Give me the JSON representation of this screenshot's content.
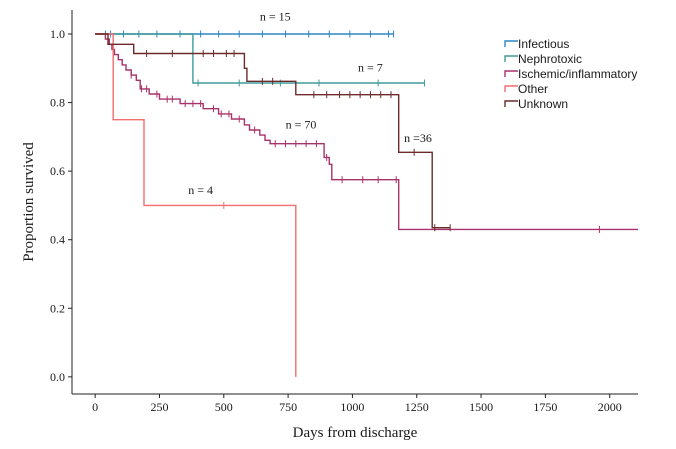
{
  "chart_data": {
    "type": "line",
    "subtype": "kaplan-meier",
    "title": "",
    "xlabel": "Days from discharge",
    "ylabel": "Proportion survived",
    "xlim": [
      -90,
      2110
    ],
    "ylim": [
      -0.05,
      1.07
    ],
    "xticks": [
      0,
      250,
      500,
      750,
      1000,
      1250,
      1500,
      1750,
      2000
    ],
    "yticks": [
      0.0,
      0.2,
      0.4,
      0.6,
      0.8,
      1.0
    ],
    "ytick_labels": [
      "0.0",
      "0.2",
      "0.4",
      "0.6",
      "0.8",
      "1.0"
    ],
    "grid": false,
    "legend_position": "top-right",
    "series": [
      {
        "name": "Infectious",
        "color": "#2E86C1",
        "steps": [
          [
            0,
            1.0
          ],
          [
            1160,
            1.0
          ]
        ],
        "censor_times": [
          40,
          60,
          110,
          170,
          240,
          330,
          410,
          480,
          560,
          650,
          740,
          830,
          910,
          990,
          1070,
          1140,
          1160
        ]
      },
      {
        "name": "Nephrotoxic",
        "color": "#3E9C9C",
        "steps": [
          [
            0,
            1.0
          ],
          [
            380,
            0.857
          ],
          [
            1280,
            0.857
          ]
        ],
        "censor_times": [
          400,
          560,
          720,
          870,
          1100,
          1280
        ]
      },
      {
        "name": "Ischemic/inflammatory",
        "color": "#A8326A",
        "steps": [
          [
            0,
            1.0
          ],
          [
            40,
            0.985
          ],
          [
            55,
            0.97
          ],
          [
            65,
            0.955
          ],
          [
            75,
            0.94
          ],
          [
            90,
            0.925
          ],
          [
            105,
            0.91
          ],
          [
            120,
            0.895
          ],
          [
            140,
            0.88
          ],
          [
            160,
            0.865
          ],
          [
            175,
            0.84
          ],
          [
            210,
            0.825
          ],
          [
            250,
            0.81
          ],
          [
            330,
            0.797
          ],
          [
            420,
            0.782
          ],
          [
            480,
            0.767
          ],
          [
            530,
            0.752
          ],
          [
            580,
            0.735
          ],
          [
            600,
            0.72
          ],
          [
            640,
            0.705
          ],
          [
            660,
            0.69
          ],
          [
            680,
            0.68
          ],
          [
            890,
            0.64
          ],
          [
            910,
            0.62
          ],
          [
            920,
            0.575
          ],
          [
            1180,
            0.43
          ],
          [
            2110,
            0.43
          ]
        ],
        "censor_times": [
          140,
          180,
          200,
          240,
          280,
          300,
          350,
          380,
          410,
          460,
          490,
          520,
          560,
          620,
          700,
          740,
          780,
          820,
          860,
          900,
          960,
          1040,
          1100,
          1170,
          1960
        ]
      },
      {
        "name": "Other",
        "color": "#F26D6D",
        "steps": [
          [
            0,
            1.0
          ],
          [
            70,
            0.75
          ],
          [
            190,
            0.5
          ],
          [
            780,
            0.0
          ]
        ],
        "censor_times": [
          500
        ]
      },
      {
        "name": "Unknown",
        "color": "#6E2A2A",
        "steps": [
          [
            0,
            1.0
          ],
          [
            50,
            0.97
          ],
          [
            150,
            0.943
          ],
          [
            580,
            0.9
          ],
          [
            590,
            0.862
          ],
          [
            780,
            0.823
          ],
          [
            1180,
            0.655
          ],
          [
            1310,
            0.435
          ],
          [
            1380,
            0.435
          ]
        ],
        "censor_times": [
          200,
          300,
          420,
          460,
          510,
          540,
          650,
          690,
          850,
          900,
          950,
          990,
          1030,
          1070,
          1110,
          1150,
          1240,
          1320,
          1380
        ]
      }
    ],
    "annotations": [
      {
        "text": "n = 15",
        "x": 700,
        "y": 1.04
      },
      {
        "text": "n = 7",
        "x": 1070,
        "y": 0.89
      },
      {
        "text": "n = 70",
        "x": 800,
        "y": 0.725
      },
      {
        "text": "n =36",
        "x": 1255,
        "y": 0.685
      },
      {
        "text": "n = 4",
        "x": 410,
        "y": 0.533
      }
    ]
  }
}
